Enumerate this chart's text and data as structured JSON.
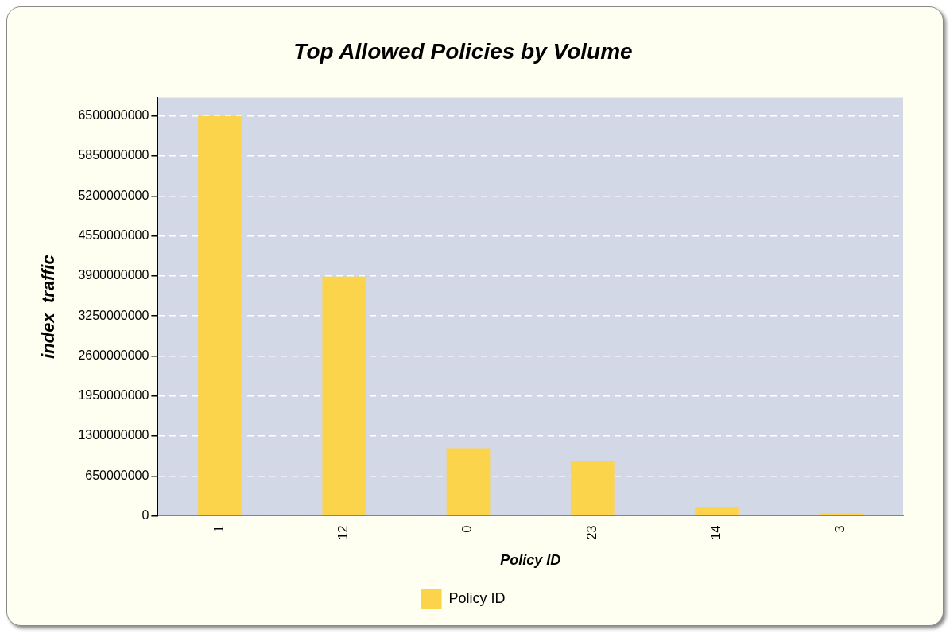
{
  "chart_data": {
    "type": "bar",
    "title": "Top Allowed Policies by Volume",
    "xlabel": "Policy ID",
    "ylabel": "index_traffic",
    "categories": [
      "1",
      "12",
      "0",
      "23",
      "14",
      "3"
    ],
    "series": [
      {
        "name": "Policy ID",
        "color": "#fcd44c",
        "values": [
          6500000000,
          3890000000,
          1100000000,
          900000000,
          150000000,
          40000000
        ]
      }
    ],
    "ylim": [
      0,
      6800000000
    ],
    "yticks": [
      0,
      650000000,
      1300000000,
      1950000000,
      2600000000,
      3250000000,
      3900000000,
      4550000000,
      5200000000,
      5850000000,
      6500000000
    ],
    "grid": "y",
    "legend": "bottom"
  }
}
